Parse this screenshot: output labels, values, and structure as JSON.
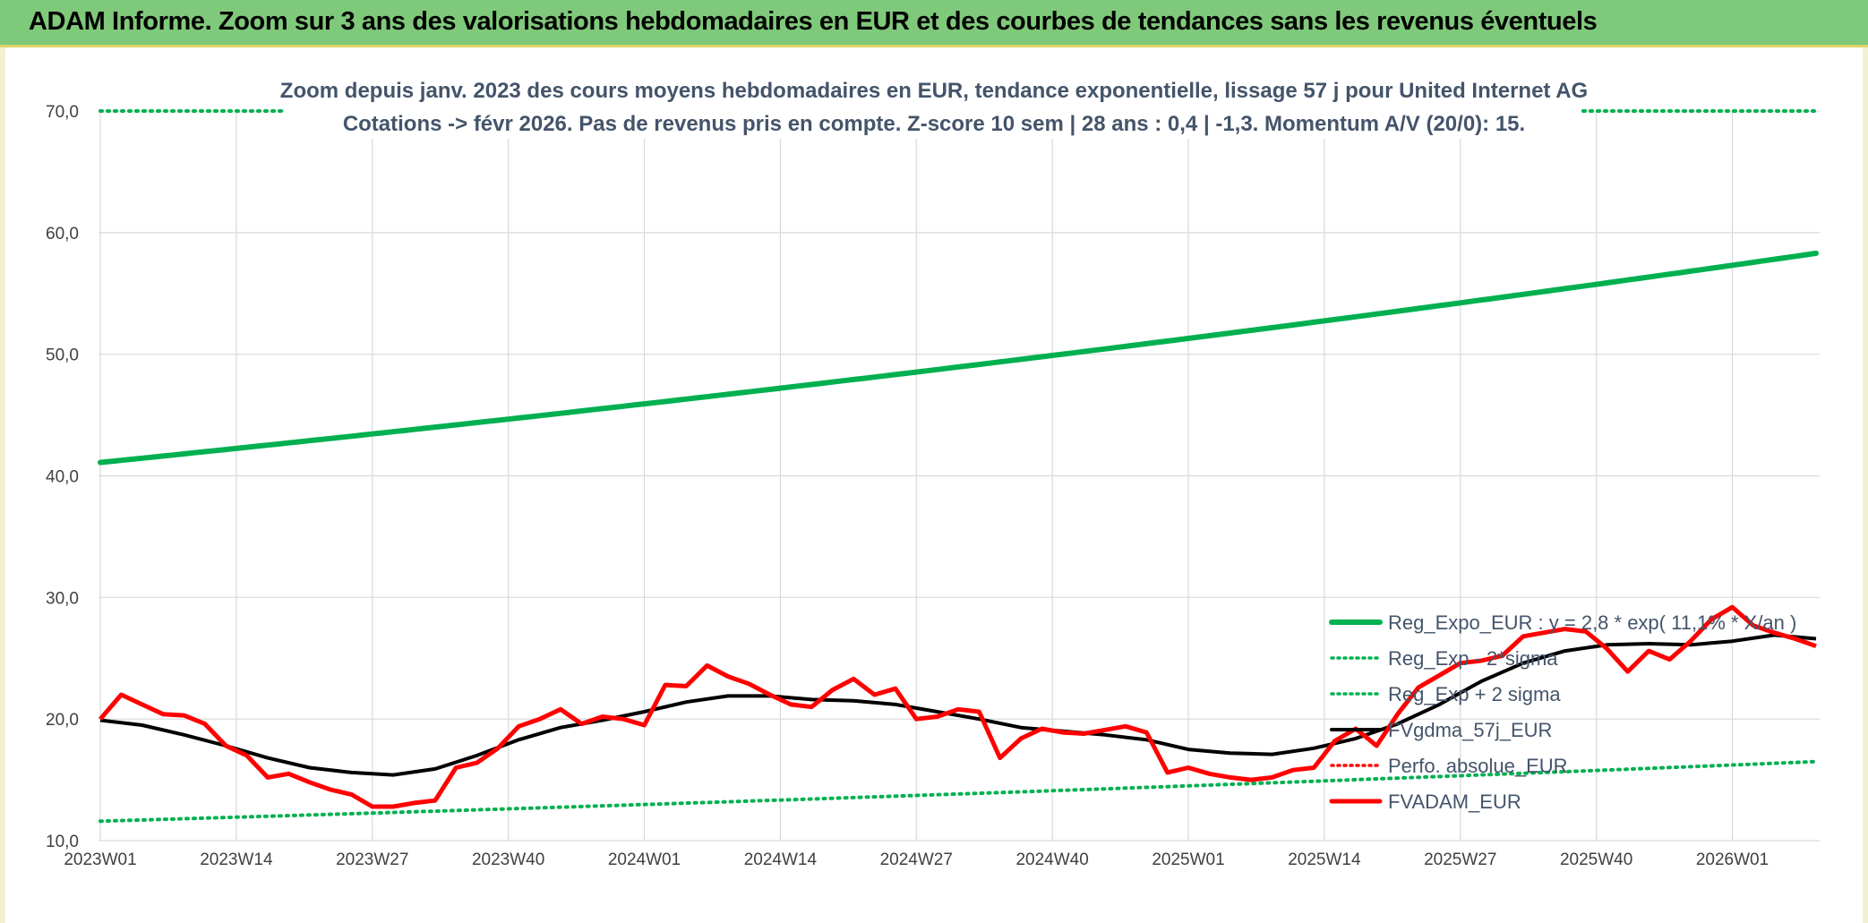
{
  "banner": {
    "title": "ADAM Informe. Zoom sur 3 ans des valorisations hebdomadaires en EUR et des courbes de tendances sans les revenus éventuels"
  },
  "chart_data": {
    "type": "line",
    "subtitle_line1": "Zoom depuis janv. 2023 des cours moyens hebdomadaires en EUR, tendance exponentielle, lissage 57 j pour United Internet AG",
    "subtitle_line2": "Cotations -> févr 2026. Pas de revenus pris en compte. Z-score 10 sem | 28 ans : 0,4 | -1,3. Momentum A/V (20/0): 15.",
    "ylim": [
      10,
      70
    ],
    "yticks": [
      "10,0",
      "20,0",
      "30,0",
      "40,0",
      "50,0",
      "60,0",
      "70,0"
    ],
    "xticks": [
      "2023W01",
      "2023W14",
      "2023W27",
      "2023W40",
      "2024W01",
      "2024W14",
      "2024W27",
      "2024W40",
      "2025W01",
      "2025W14",
      "2025W27",
      "2025W40",
      "2026W01"
    ],
    "n_weeks": 165,
    "grid": true,
    "legend_position": "bottom-right",
    "colors": {
      "reg_expo": "#00b050",
      "reg_minus": "#00b050",
      "reg_plus": "#00b050",
      "fvgdma": "#000000",
      "perfo": "#ff0000",
      "fvadam": "#ff0000"
    },
    "legend": [
      {
        "key": "reg_expo",
        "label": "Reg_Expo_EUR : y = 2,8 * exp( 11,1% * X/an )"
      },
      {
        "key": "reg_minus",
        "label": "Reg_Exp - 2*sigma"
      },
      {
        "key": "reg_plus",
        "label": "Reg_Exp + 2 sigma"
      },
      {
        "key": "fvgdma",
        "label": "FVgdma_57j_EUR"
      },
      {
        "key": "perfo",
        "label": "Perfo. absolue_EUR"
      },
      {
        "key": "fvadam",
        "label": "FVADAM_EUR"
      }
    ],
    "series": {
      "reg_expo": {
        "start": 41.1,
        "end": 58.3
      },
      "reg_minus": {
        "start": 11.6,
        "end": 16.5
      },
      "reg_plus": {
        "value": 70.0
      },
      "fvgdma": {
        "x": [
          0,
          4,
          8,
          12,
          16,
          20,
          24,
          28,
          32,
          36,
          40,
          44,
          48,
          52,
          56,
          60,
          64,
          68,
          72,
          76,
          80,
          84,
          88,
          92,
          96,
          100,
          104,
          108,
          112,
          116,
          120,
          124,
          128,
          132,
          136,
          140,
          144,
          148,
          152,
          156,
          160,
          164
        ],
        "y": [
          19.9,
          19.5,
          18.7,
          17.8,
          16.8,
          16.0,
          15.6,
          15.4,
          15.9,
          17.0,
          18.3,
          19.3,
          19.9,
          20.6,
          21.4,
          21.9,
          21.9,
          21.6,
          21.5,
          21.2,
          20.6,
          20.0,
          19.3,
          19.0,
          18.7,
          18.3,
          17.5,
          17.2,
          17.1,
          17.6,
          18.4,
          19.6,
          21.2,
          23.1,
          24.6,
          25.6,
          26.1,
          26.2,
          26.1,
          26.4,
          26.9,
          26.6
        ]
      },
      "fvadam": {
        "x": [
          0,
          2,
          4,
          6,
          8,
          10,
          12,
          14,
          16,
          18,
          20,
          22,
          24,
          26,
          28,
          30,
          32,
          34,
          36,
          38,
          40,
          42,
          44,
          46,
          48,
          50,
          52,
          54,
          56,
          58,
          60,
          62,
          64,
          66,
          68,
          70,
          72,
          74,
          76,
          78,
          80,
          82,
          84,
          86,
          88,
          90,
          92,
          94,
          96,
          98,
          100,
          102,
          104,
          106,
          108,
          110,
          112,
          114,
          116,
          118,
          120,
          122,
          124,
          126,
          128,
          130,
          132,
          134,
          136,
          138,
          140,
          142,
          144,
          146,
          148,
          150,
          152,
          154,
          156,
          158,
          160,
          162,
          164
        ],
        "y": [
          20.0,
          22.0,
          21.2,
          20.4,
          20.3,
          19.6,
          17.8,
          17.0,
          15.2,
          15.5,
          14.8,
          14.2,
          13.8,
          12.8,
          12.8,
          13.1,
          13.3,
          16.0,
          16.4,
          17.6,
          19.4,
          20.0,
          20.8,
          19.6,
          20.2,
          20.0,
          19.5,
          22.8,
          22.7,
          24.4,
          23.5,
          22.9,
          22.0,
          21.2,
          21.0,
          22.4,
          23.3,
          22.0,
          22.5,
          20.0,
          20.2,
          20.8,
          20.6,
          16.8,
          18.4,
          19.2,
          18.9,
          18.8,
          19.1,
          19.4,
          18.9,
          15.6,
          16.0,
          15.5,
          15.2,
          15.0,
          15.2,
          15.8,
          16.0,
          18.2,
          19.2,
          17.8,
          20.4,
          22.6,
          23.6,
          24.6,
          24.8,
          25.2,
          26.8,
          27.1,
          27.4,
          27.2,
          25.8,
          23.9,
          25.6,
          24.9,
          26.4,
          28.2,
          29.2,
          27.7,
          27.1,
          26.6,
          26.0
        ]
      }
    }
  }
}
